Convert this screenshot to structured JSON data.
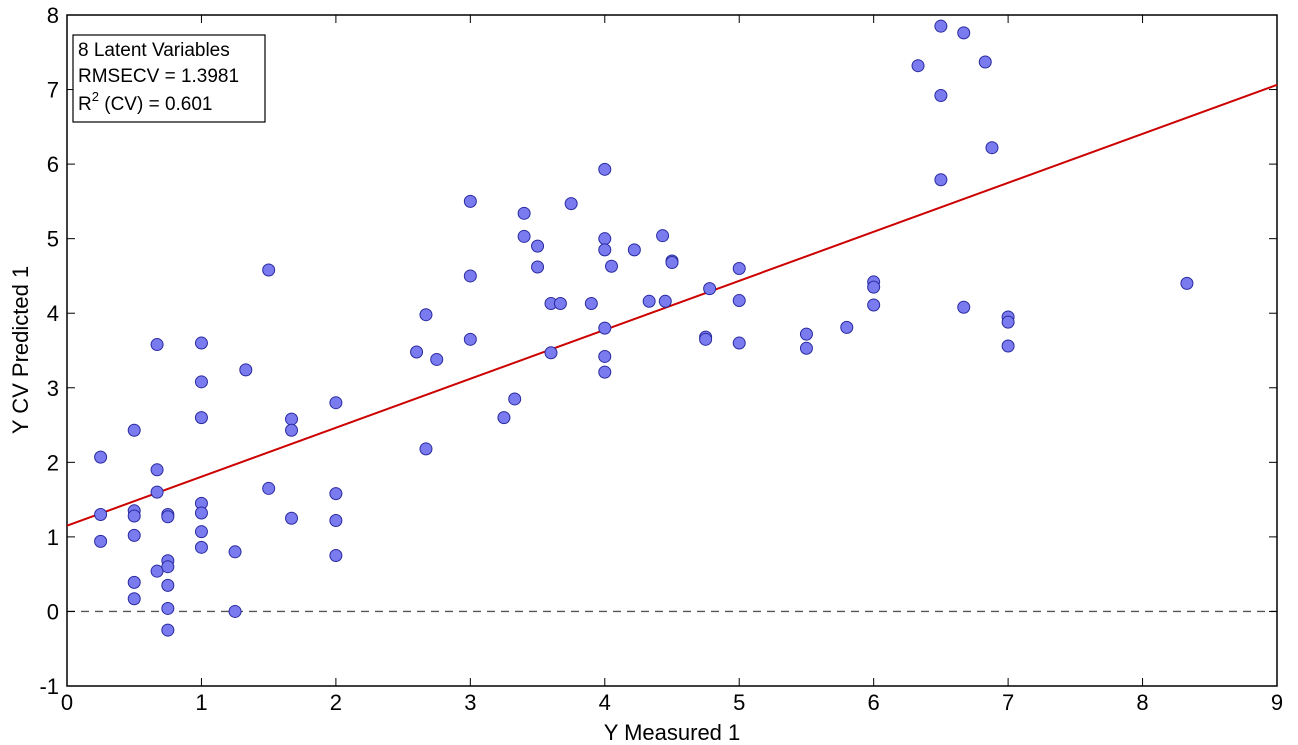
{
  "chart_data": {
    "type": "scatter",
    "xlabel": "Y Measured 1",
    "ylabel": "Y CV Predicted 1",
    "xlim": [
      0,
      9
    ],
    "ylim": [
      -1,
      8
    ],
    "xticks": [
      "0",
      "1",
      "2",
      "3",
      "4",
      "5",
      "6",
      "7",
      "8",
      "9"
    ],
    "yticks": [
      "-1",
      "0",
      "1",
      "2",
      "3",
      "4",
      "5",
      "6",
      "7",
      "8"
    ],
    "grid": false,
    "annotation": {
      "line1": "8 Latent Variables",
      "line2": "RMSECV = 1.3981",
      "line3_prefix": "R",
      "line3_sup": "2",
      "line3_suffix": " (CV) = 0.601",
      "placement": "top-left"
    },
    "fit_line": {
      "intercept": 1.15,
      "slope": 0.657,
      "color": "#cc0000"
    },
    "zero_line": {
      "y": 0,
      "style": "dashed",
      "color": "#555555"
    },
    "marker_color": "#7b7bf0",
    "marker_edge": "#2a2aa0",
    "points": [
      [
        0.25,
        2.07
      ],
      [
        0.25,
        1.3
      ],
      [
        0.25,
        0.94
      ],
      [
        0.5,
        2.43
      ],
      [
        0.5,
        1.35
      ],
      [
        0.5,
        1.28
      ],
      [
        0.5,
        1.02
      ],
      [
        0.5,
        0.39
      ],
      [
        0.5,
        0.17
      ],
      [
        0.67,
        3.58
      ],
      [
        0.67,
        1.9
      ],
      [
        0.67,
        1.6
      ],
      [
        0.67,
        0.54
      ],
      [
        0.75,
        1.3
      ],
      [
        0.75,
        1.27
      ],
      [
        0.75,
        0.68
      ],
      [
        0.75,
        0.6
      ],
      [
        0.75,
        0.35
      ],
      [
        0.75,
        0.04
      ],
      [
        0.75,
        -0.25
      ],
      [
        1.0,
        3.6
      ],
      [
        1.0,
        3.08
      ],
      [
        1.0,
        2.6
      ],
      [
        1.0,
        1.45
      ],
      [
        1.0,
        1.32
      ],
      [
        1.0,
        1.07
      ],
      [
        1.0,
        0.86
      ],
      [
        1.25,
        0.8
      ],
      [
        1.25,
        0.0
      ],
      [
        1.33,
        3.24
      ],
      [
        1.5,
        4.58
      ],
      [
        1.5,
        1.65
      ],
      [
        1.67,
        2.58
      ],
      [
        1.67,
        2.43
      ],
      [
        1.67,
        1.25
      ],
      [
        2.0,
        2.8
      ],
      [
        2.0,
        1.58
      ],
      [
        2.0,
        1.22
      ],
      [
        2.0,
        0.75
      ],
      [
        2.6,
        3.48
      ],
      [
        2.67,
        3.98
      ],
      [
        2.67,
        2.18
      ],
      [
        2.75,
        3.38
      ],
      [
        3.0,
        5.5
      ],
      [
        3.0,
        4.5
      ],
      [
        3.0,
        3.65
      ],
      [
        3.25,
        2.6
      ],
      [
        3.33,
        2.85
      ],
      [
        3.4,
        5.34
      ],
      [
        3.4,
        5.03
      ],
      [
        3.5,
        4.9
      ],
      [
        3.5,
        4.62
      ],
      [
        3.6,
        4.13
      ],
      [
        3.6,
        3.47
      ],
      [
        3.67,
        4.13
      ],
      [
        3.75,
        5.47
      ],
      [
        3.9,
        4.13
      ],
      [
        4.0,
        5.93
      ],
      [
        4.0,
        5.0
      ],
      [
        4.0,
        4.85
      ],
      [
        4.0,
        3.8
      ],
      [
        4.0,
        3.42
      ],
      [
        4.0,
        3.21
      ],
      [
        4.05,
        4.63
      ],
      [
        4.22,
        4.85
      ],
      [
        4.33,
        4.16
      ],
      [
        4.43,
        5.04
      ],
      [
        4.45,
        4.16
      ],
      [
        4.5,
        4.7
      ],
      [
        4.5,
        4.68
      ],
      [
        4.75,
        3.68
      ],
      [
        4.75,
        3.65
      ],
      [
        4.78,
        4.33
      ],
      [
        5.0,
        4.6
      ],
      [
        5.0,
        4.17
      ],
      [
        5.0,
        3.6
      ],
      [
        5.5,
        3.72
      ],
      [
        5.5,
        3.53
      ],
      [
        5.8,
        3.81
      ],
      [
        6.0,
        4.42
      ],
      [
        6.0,
        4.35
      ],
      [
        6.0,
        4.11
      ],
      [
        6.33,
        7.32
      ],
      [
        6.5,
        7.85
      ],
      [
        6.5,
        6.92
      ],
      [
        6.5,
        5.79
      ],
      [
        6.67,
        7.76
      ],
      [
        6.67,
        4.08
      ],
      [
        6.83,
        7.37
      ],
      [
        6.88,
        6.22
      ],
      [
        7.0,
        3.95
      ],
      [
        7.0,
        3.88
      ],
      [
        7.0,
        3.56
      ],
      [
        8.33,
        4.4
      ]
    ]
  }
}
